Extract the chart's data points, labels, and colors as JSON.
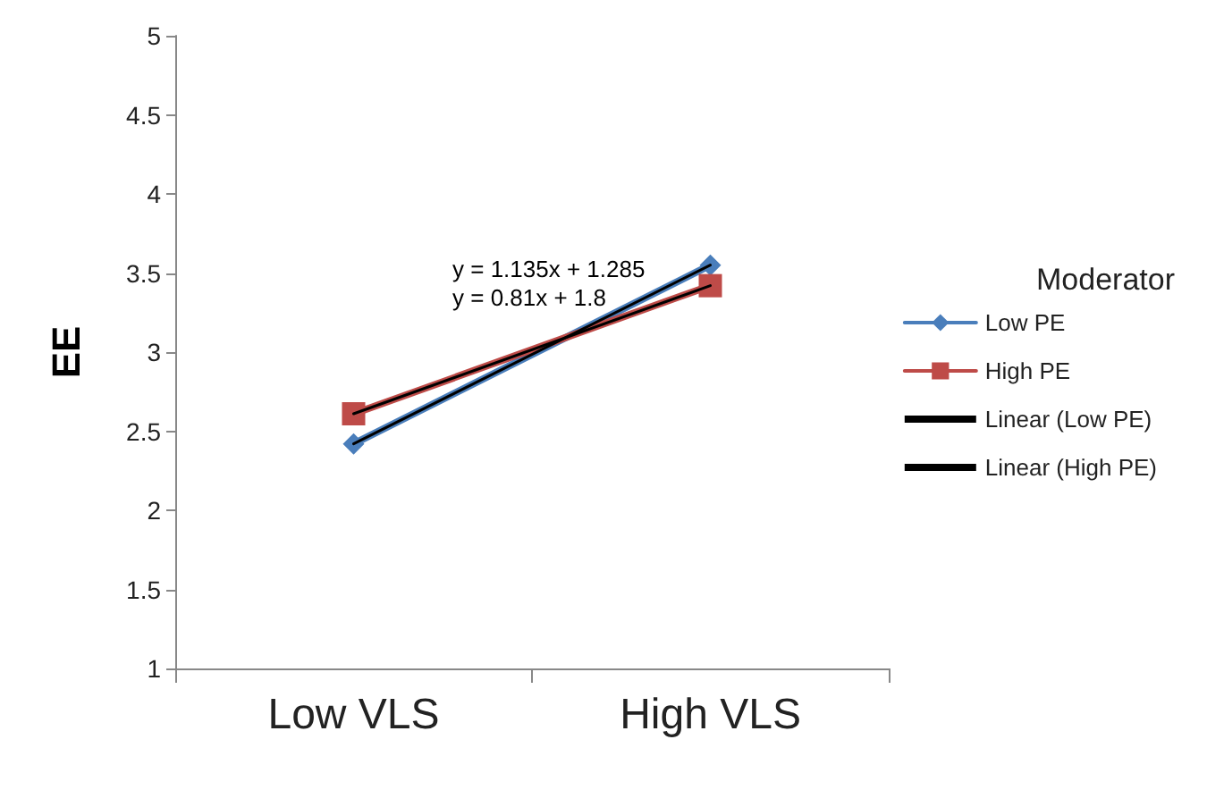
{
  "chart_data": {
    "type": "line",
    "ylabel": "EE",
    "legend_title": "Moderator",
    "categories": [
      "Low VLS",
      "High VLS"
    ],
    "series": [
      {
        "name": "Low PE",
        "color": "#4a7ebb",
        "values": [
          2.42,
          3.55
        ],
        "marker": "diamond"
      },
      {
        "name": "High PE",
        "color": "#be4b48",
        "values": [
          2.61,
          3.42
        ],
        "marker": "square"
      },
      {
        "name": "Linear (Low PE)",
        "color": "#000000",
        "values": [
          2.42,
          3.55
        ],
        "marker": "none"
      },
      {
        "name": "Linear (High PE)",
        "color": "#000000",
        "values": [
          2.61,
          3.42
        ],
        "marker": "none"
      }
    ],
    "ylim": [
      1,
      5
    ],
    "yticks": [
      1,
      1.5,
      2,
      2.5,
      3,
      3.5,
      4,
      4.5,
      5
    ],
    "grid": false,
    "legend": "right",
    "annotations": [
      "y = 1.135x + 1.285",
      "y = 0.81x + 1.8"
    ]
  }
}
